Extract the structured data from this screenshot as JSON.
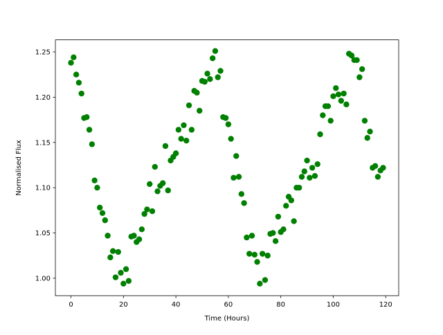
{
  "chart_data": {
    "type": "scatter",
    "xlabel": "Time (Hours)",
    "ylabel": "Normalised Flux",
    "color": "#008000",
    "x": [
      0,
      1,
      2,
      3,
      4,
      5,
      6,
      7,
      8,
      9,
      10,
      11,
      12,
      13,
      14,
      15,
      16,
      17,
      18,
      19,
      20,
      21,
      22,
      23,
      24,
      25,
      26,
      27,
      28,
      29,
      30,
      31,
      32,
      33,
      34,
      35,
      36,
      37,
      38,
      39,
      40,
      41,
      42,
      43,
      44,
      45,
      46,
      47,
      48,
      49,
      50,
      51,
      52,
      53,
      54,
      55,
      56,
      57,
      58,
      59,
      60,
      61,
      62,
      63,
      64,
      65,
      66,
      67,
      68,
      69,
      70,
      71,
      72,
      73,
      74,
      75,
      76,
      77,
      78,
      79,
      80,
      81,
      82,
      83,
      84,
      85,
      86,
      87,
      88,
      89,
      90,
      91,
      92,
      93,
      94,
      95,
      96,
      97,
      98,
      99,
      100,
      101,
      102,
      103,
      104,
      105,
      106,
      107,
      108,
      109,
      110,
      111,
      112,
      113,
      114,
      115,
      116,
      117,
      118,
      119
    ],
    "values": [
      1.238,
      1.244,
      1.225,
      1.216,
      1.204,
      1.177,
      1.178,
      1.164,
      1.148,
      1.108,
      1.1,
      1.078,
      1.072,
      1.064,
      1.047,
      1.023,
      1.03,
      1.001,
      1.029,
      1.006,
      0.994,
      1.01,
      0.997,
      1.046,
      1.047,
      1.04,
      1.043,
      1.054,
      1.071,
      1.076,
      1.104,
      1.074,
      1.123,
      1.096,
      1.102,
      1.105,
      1.146,
      1.097,
      1.13,
      1.134,
      1.138,
      1.164,
      1.154,
      1.169,
      1.152,
      1.191,
      1.164,
      1.207,
      1.205,
      1.185,
      1.218,
      1.217,
      1.226,
      1.22,
      1.243,
      1.251,
      1.222,
      1.229,
      1.178,
      1.177,
      1.17,
      1.154,
      1.111,
      1.135,
      1.112,
      1.093,
      1.083,
      1.045,
      1.027,
      1.047,
      1.026,
      1.018,
      0.994,
      1.027,
      0.998,
      1.025,
      1.049,
      1.05,
      1.041,
      1.068,
      1.051,
      1.054,
      1.08,
      1.09,
      1.086,
      1.063,
      1.1,
      1.1,
      1.112,
      1.118,
      1.13,
      1.111,
      1.122,
      1.113,
      1.126,
      1.159,
      1.18,
      1.19,
      1.19,
      1.174,
      1.201,
      1.21,
      1.203,
      1.196,
      1.204,
      1.192,
      1.248,
      1.246,
      1.241,
      1.241,
      1.222,
      1.231,
      1.174,
      1.155,
      1.162,
      1.122,
      1.124,
      1.112,
      1.119,
      1.122
    ],
    "xlim": [
      -5.95,
      124.95
    ],
    "xticks": [
      0,
      20,
      40,
      60,
      80,
      100,
      120
    ],
    "ylim": [
      0.9807,
      1.2633
    ],
    "yticks": [
      {
        "value": 1,
        "label": "1.00"
      },
      1.05,
      {
        "value": 1.1,
        "label": "1.10"
      },
      1.15,
      {
        "value": 1.2,
        "label": "1.20"
      },
      1.25
    ]
  }
}
